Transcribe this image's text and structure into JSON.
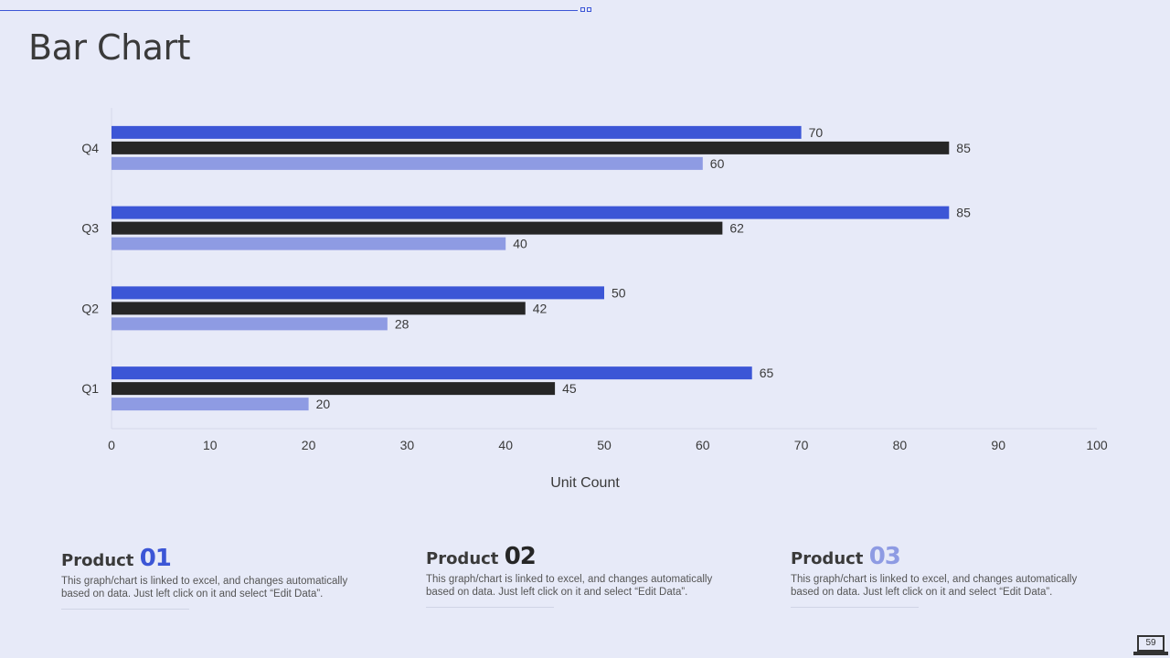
{
  "slide": {
    "title": "Bar Chart",
    "page_number": "59"
  },
  "colors": {
    "blue": "#3c56d6",
    "dark": "#262626",
    "light": "#8e9be3",
    "background": "#e7eaf8"
  },
  "chart_data": {
    "type": "bar",
    "orientation": "horizontal",
    "categories": [
      "Q1",
      "Q2",
      "Q3",
      "Q4"
    ],
    "series": [
      {
        "name": "Product 01",
        "color": "#3c56d6",
        "values": [
          65,
          50,
          85,
          70
        ]
      },
      {
        "name": "Product 02",
        "color": "#262626",
        "values": [
          45,
          42,
          62,
          85
        ]
      },
      {
        "name": "Product 03",
        "color": "#8e9be3",
        "values": [
          20,
          28,
          40,
          60
        ]
      }
    ],
    "xlabel": "Unit Count",
    "ylabel": "",
    "xlim": [
      0,
      100
    ],
    "xticks": [
      0,
      10,
      20,
      30,
      40,
      50,
      60,
      70,
      80,
      90,
      100
    ],
    "grid": false,
    "legend": "none"
  },
  "products": [
    {
      "label": "Product",
      "number": "01",
      "color": "#3c56d6",
      "description": "This graph/chart is linked to excel, and changes automatically based on data. Just left click on it and select “Edit Data”."
    },
    {
      "label": "Product",
      "number": "02",
      "color": "#262626",
      "description": "This graph/chart is linked to excel, and changes automatically based on data. Just left click on it and select “Edit Data”."
    },
    {
      "label": "Product",
      "number": "03",
      "color": "#8e9be3",
      "description": "This graph/chart is linked to excel, and changes automatically based on data. Just left click on it and select “Edit Data”."
    }
  ]
}
